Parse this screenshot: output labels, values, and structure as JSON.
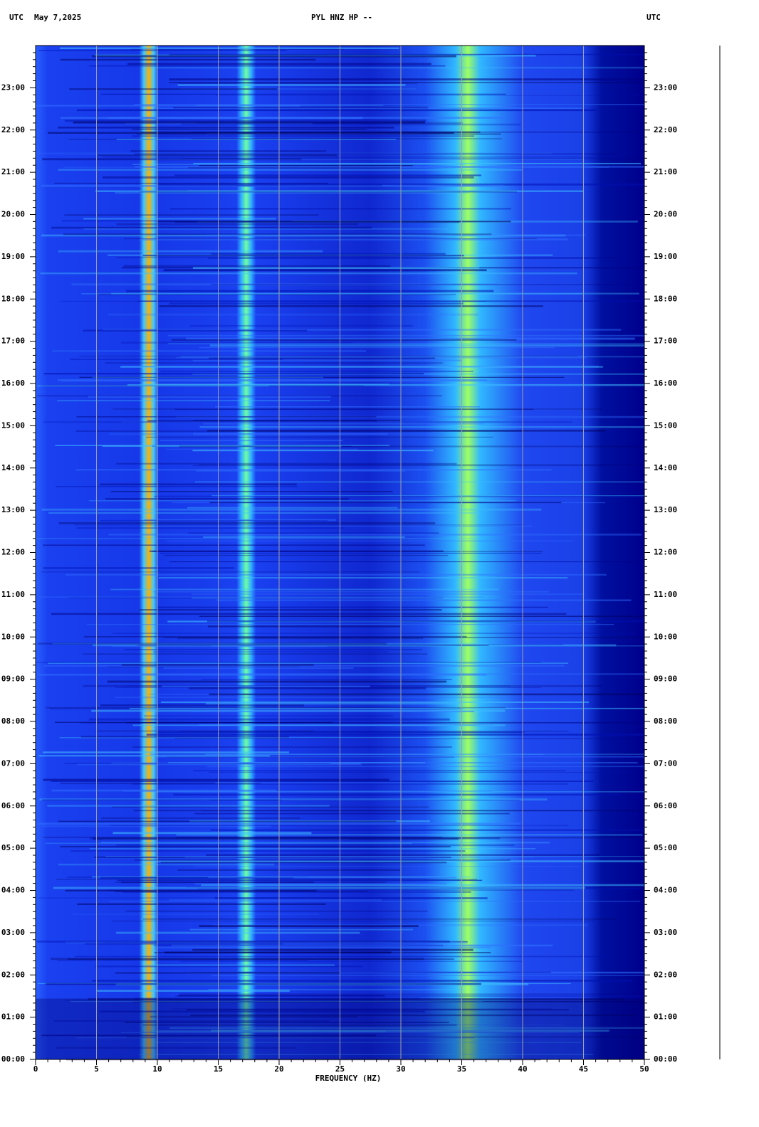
{
  "chart_data": {
    "type": "spectrogram",
    "title": "PYL HNZ HP --",
    "date": "May 7,2025",
    "left_unit": "UTC",
    "right_unit": "UTC",
    "xlabel": "FREQUENCY (HZ)",
    "xlim": [
      0,
      50
    ],
    "xticks": [
      0,
      5,
      10,
      15,
      20,
      25,
      30,
      35,
      40,
      45,
      50
    ],
    "ylim": [
      0,
      24
    ],
    "yticks": [
      {
        "value": 0,
        "label": "00:00"
      },
      {
        "value": 1,
        "label": "01:00"
      },
      {
        "value": 2,
        "label": "02:00"
      },
      {
        "value": 3,
        "label": "03:00"
      },
      {
        "value": 4,
        "label": "04:00"
      },
      {
        "value": 5,
        "label": "05:00"
      },
      {
        "value": 6,
        "label": "06:00"
      },
      {
        "value": 7,
        "label": "07:00"
      },
      {
        "value": 8,
        "label": "08:00"
      },
      {
        "value": 9,
        "label": "09:00"
      },
      {
        "value": 10,
        "label": "10:00"
      },
      {
        "value": 11,
        "label": "11:00"
      },
      {
        "value": 12,
        "label": "12:00"
      },
      {
        "value": 13,
        "label": "13:00"
      },
      {
        "value": 14,
        "label": "14:00"
      },
      {
        "value": 15,
        "label": "15:00"
      },
      {
        "value": 16,
        "label": "16:00"
      },
      {
        "value": 17,
        "label": "17:00"
      },
      {
        "value": 18,
        "label": "18:00"
      },
      {
        "value": 19,
        "label": "19:00"
      },
      {
        "value": 20,
        "label": "20:00"
      },
      {
        "value": 21,
        "label": "21:00"
      },
      {
        "value": 22,
        "label": "22:00"
      },
      {
        "value": 23,
        "label": "23:00"
      }
    ],
    "grid": true
  }
}
